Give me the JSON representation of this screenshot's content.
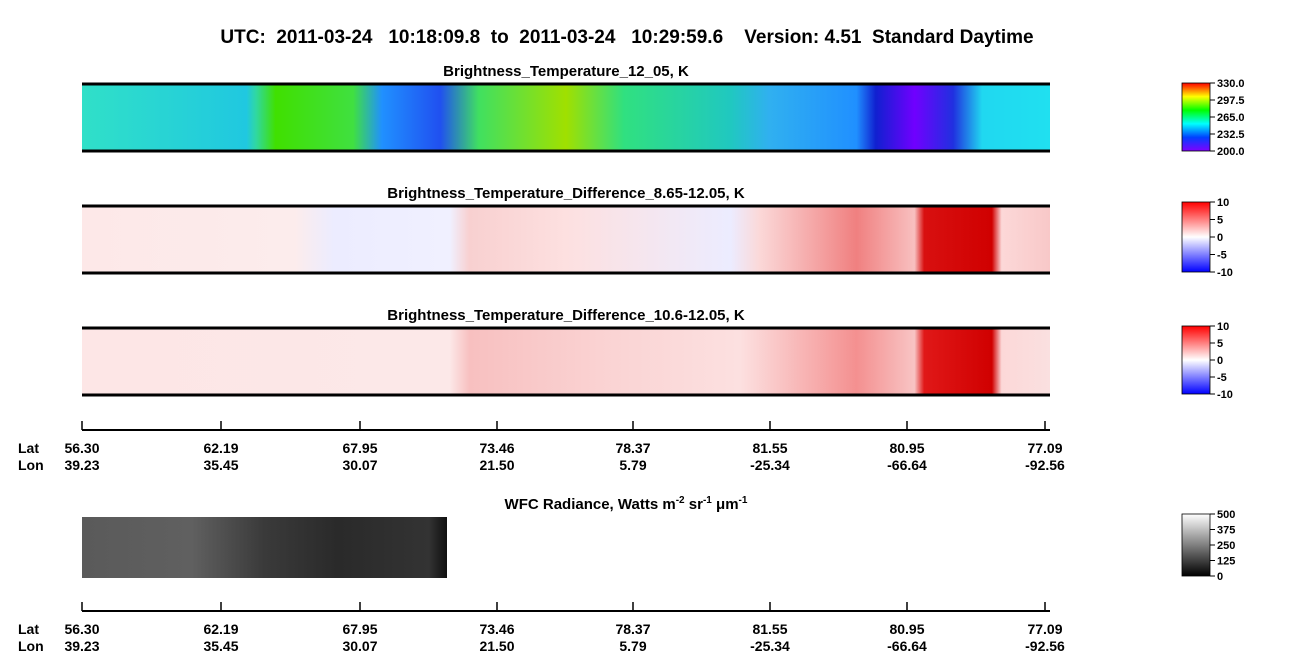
{
  "header": {
    "title": "UTC:  2011-03-24   10:18:09.8  to  2011-03-24   10:29:59.6    Version: 4.51  Standard Daytime"
  },
  "panels": [
    {
      "title": "Brightness_Temperature_12_05, K",
      "colorbar": {
        "ticks": [
          {
            "value": 330,
            "label": "330.0"
          },
          {
            "value": 297.5,
            "label": "297.5"
          },
          {
            "value": 265,
            "label": "265.0"
          },
          {
            "value": 232.5,
            "label": "232.5"
          },
          {
            "value": 200,
            "label": "200.0"
          }
        ]
      }
    },
    {
      "title": "Brightness_Temperature_Difference_8.65-12.05, K",
      "colorbar": {
        "ticks": [
          10,
          5,
          0,
          -5,
          -10
        ]
      }
    },
    {
      "title": "Brightness_Temperature_Difference_10.6-12.05, K",
      "colorbar": {
        "ticks": [
          10,
          5,
          0,
          -5,
          -10
        ]
      }
    },
    {
      "title_parts": [
        "WFC Radiance, Watts m",
        "-2",
        " sr",
        "-1",
        " μm",
        "-1"
      ],
      "colorbar": {
        "ticks": [
          500,
          375,
          250,
          125,
          0
        ]
      }
    }
  ],
  "track_axes": [
    {
      "row_labels": [
        "Lat",
        "Lon"
      ],
      "lat": [
        "56.30",
        "62.19",
        "67.95",
        "73.46",
        "78.37",
        "81.55",
        "80.95",
        "77.09"
      ],
      "lon": [
        "39.23",
        "35.45",
        "30.07",
        "21.50",
        "5.79",
        "-25.34",
        "-66.64",
        "-92.56"
      ]
    },
    {
      "row_labels": [
        "Lat",
        "Lon"
      ],
      "lat": [
        "56.30",
        "62.19",
        "67.95",
        "73.46",
        "78.37",
        "81.55",
        "80.95",
        "77.09"
      ],
      "lon": [
        "39.23",
        "35.45",
        "30.07",
        "21.50",
        "5.79",
        "-25.34",
        "-66.64",
        "-92.56"
      ]
    }
  ]
}
